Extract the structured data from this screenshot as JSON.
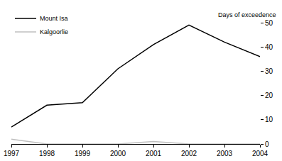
{
  "chart_data": {
    "type": "line",
    "y_label": "Days of exceedence",
    "x": [
      1997,
      1998,
      1999,
      2000,
      2001,
      2002,
      2003,
      2004
    ],
    "series": [
      {
        "name": "Mount Isa",
        "color": "#000000",
        "values": [
          7,
          16,
          17,
          31,
          41,
          49,
          42,
          36
        ]
      },
      {
        "name": "Kalgoorlie",
        "color": "#bfbfbf",
        "values": [
          2,
          0,
          0,
          0,
          1,
          0,
          0,
          0
        ]
      }
    ],
    "xlim": [
      1997,
      2004
    ],
    "xticks": [
      1997,
      1998,
      1999,
      2000,
      2001,
      2002,
      2003,
      2004
    ],
    "ylim": [
      0,
      50
    ],
    "yticks": [
      0,
      10,
      20,
      30,
      40,
      50
    ],
    "grid": false,
    "legend": "upper left"
  }
}
